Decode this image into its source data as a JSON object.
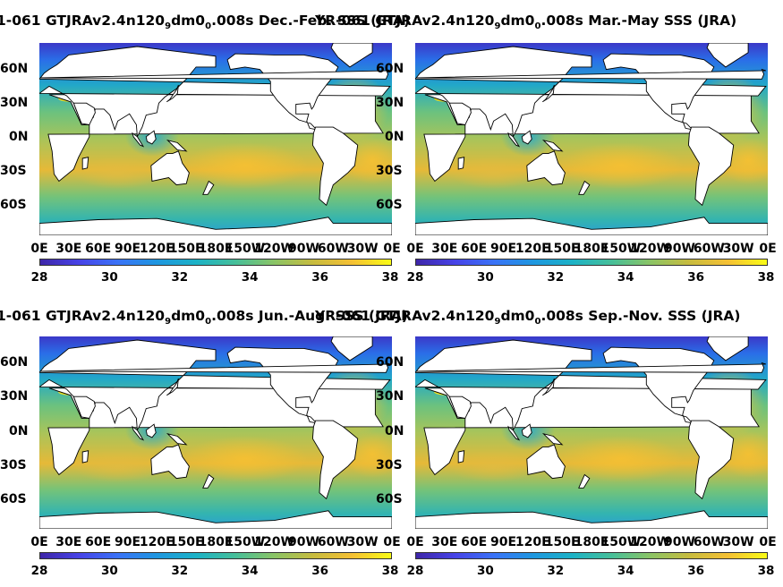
{
  "colorbar": {
    "ticks": [
      "28",
      "30",
      "32",
      "34",
      "36",
      "38"
    ],
    "min": 28,
    "max": 38,
    "colormap": "parula"
  },
  "axes": {
    "lat_labels": [
      "60N",
      "30N",
      "0N",
      "30S",
      "60S"
    ],
    "lon_labels": [
      "0E",
      "30E",
      "60E",
      "90E",
      "120E",
      "150E",
      "180E",
      "150W",
      "120W",
      "90W",
      "60W",
      "30W",
      "0E"
    ]
  },
  "panels": [
    {
      "title_pre": "1-061 GTJRAv2.4n120",
      "sub1": "9",
      "title_mid": "dm0",
      "sub2": "0",
      "title_post": ".008s Dec.-Feb. SSS (JRA)",
      "overlap_text": "YR-061 GTJRAv2.4n120"
    },
    {
      "title_pre": "YR-061 GTJRAv2.4n120",
      "sub1": "9",
      "title_mid": "dm0",
      "sub2": "0",
      "title_post": ".008s Mar.-May SSS (JRA)"
    },
    {
      "title_pre": "1-061 GTJRAv2.4n120",
      "sub1": "9",
      "title_mid": "dm0",
      "sub2": "0",
      "title_post": ".008s Jun.-Aug. SSS (JRA)",
      "overlap_text": "YR-061 GTJRAv2.4n120"
    },
    {
      "title_pre": "YR-061 GTJRAv2.4n120",
      "sub1": "9",
      "title_mid": "dm0",
      "sub2": "0",
      "title_post": ".008s Sep.-Nov. SSS (JRA)"
    }
  ],
  "colors": {
    "land": "#ffffff",
    "coast": "#000000",
    "ocean_fresh": "#3b3fd8",
    "ocean_mid": "#25b4b8",
    "ocean_salty": "#f2b830"
  }
}
